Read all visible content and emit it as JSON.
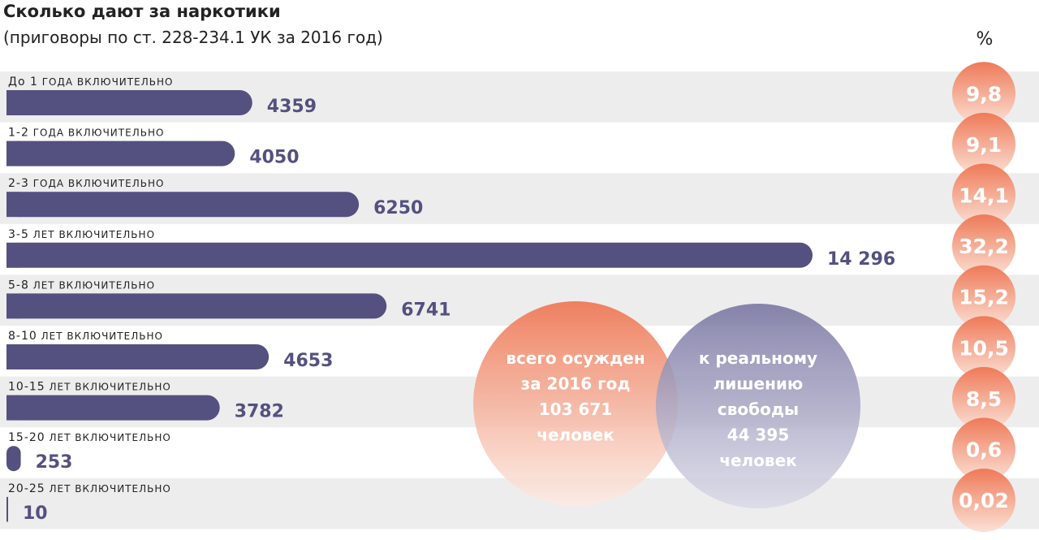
{
  "title": "Сколько дают за наркотики",
  "subtitle": "(приговоры по ст. 228-234.1 УК за 2016 год)",
  "percent_header": "%",
  "colors": {
    "bar": "#54507f",
    "row_band": "#ededed",
    "circle_top": "#ee7a58",
    "circle_bottom": "#fbe1d6",
    "venn_left_top": "#ee7a58",
    "venn_left_bottom": "#fcebe3",
    "venn_right_top": "#7a77a3",
    "venn_right_bottom": "#d9d8e6"
  },
  "chart_data": {
    "type": "bar",
    "orientation": "horizontal",
    "categories": [
      {
        "lead": "До 1",
        "rest": "года включительно"
      },
      {
        "lead": "1-2",
        "rest": "года включительно"
      },
      {
        "lead": "2-3",
        "rest": "года включительно"
      },
      {
        "lead": "3-5",
        "rest": "лет включительно"
      },
      {
        "lead": "5-8",
        "rest": "лет включительно"
      },
      {
        "lead": "8-10",
        "rest": "лет включительно"
      },
      {
        "lead": "10-15",
        "rest": "лет включительно"
      },
      {
        "lead": "15-20",
        "rest": "лет включительно"
      },
      {
        "lead": "20-25",
        "rest": "лет включительно"
      }
    ],
    "values": [
      4359,
      4050,
      6250,
      14296,
      6741,
      4653,
      3782,
      253,
      10
    ],
    "value_labels": [
      "4359",
      "4050",
      "6250",
      "14 296",
      "6741",
      "4653",
      "3782",
      "253",
      "10"
    ],
    "percents": [
      "9,8",
      "9,1",
      "14,1",
      "32,2",
      "15,2",
      "10,5",
      "8,5",
      "0,6",
      "0,02"
    ],
    "xlim": [
      0,
      14296
    ]
  },
  "venn": {
    "left": [
      "всего осужден",
      "за 2016 год",
      "103 671",
      "человек"
    ],
    "right": [
      "к реальному",
      "лишению",
      "свободы",
      "44 395",
      "человек"
    ]
  }
}
